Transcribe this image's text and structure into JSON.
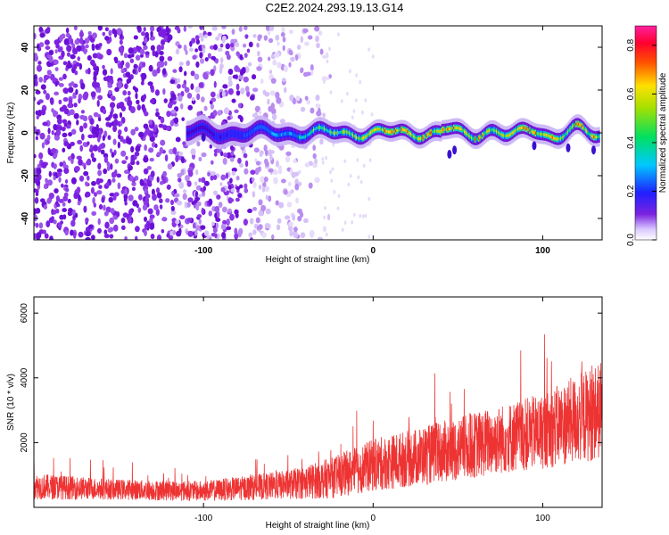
{
  "title": "C2E2.2024.293.19.13.G14",
  "chart_data": [
    {
      "type": "heatmap",
      "xlabel": "Height of straight line (km)",
      "ylabel": "Frequency (Hz)",
      "xlim": [
        -200,
        135
      ],
      "ylim": [
        -50,
        50
      ],
      "xticks": [
        -100,
        0,
        100
      ],
      "yticks": [
        -40,
        -20,
        0,
        20,
        40
      ],
      "colorbar": {
        "label": "Normalized spectral amplitude",
        "range": [
          0.0,
          0.88
        ],
        "ticks": [
          "0.0",
          "0.2",
          "0.4",
          "0.6",
          "0.8"
        ],
        "colormap": "rainbow (purple-blue-cyan-green-yellow-red-magenta)"
      },
      "description_values": {
        "noise_region_x": [
          -200,
          -30
        ],
        "signal_band_center_hz": 0,
        "signal_start_x": -110
      }
    },
    {
      "type": "line",
      "xlabel": "Height of straight line (km)",
      "ylabel": "SNR (10 * v/v)",
      "xlim": [
        -200,
        135
      ],
      "ylim": [
        0,
        6500
      ],
      "xticks": [
        -100,
        0,
        100
      ],
      "yticks": [
        2000,
        4000,
        6000
      ],
      "color": "#ee3333",
      "trend": {
        "x": [
          -200,
          -150,
          -100,
          -50,
          -25,
          0,
          25,
          50,
          75,
          100,
          135
        ],
        "y_mean": [
          650,
          550,
          500,
          700,
          900,
          1300,
          1550,
          1800,
          2100,
          2350,
          3000
        ],
        "y_spread": [
          450,
          350,
          350,
          500,
          700,
          900,
          1000,
          1100,
          1200,
          1300,
          1700
        ]
      }
    }
  ]
}
